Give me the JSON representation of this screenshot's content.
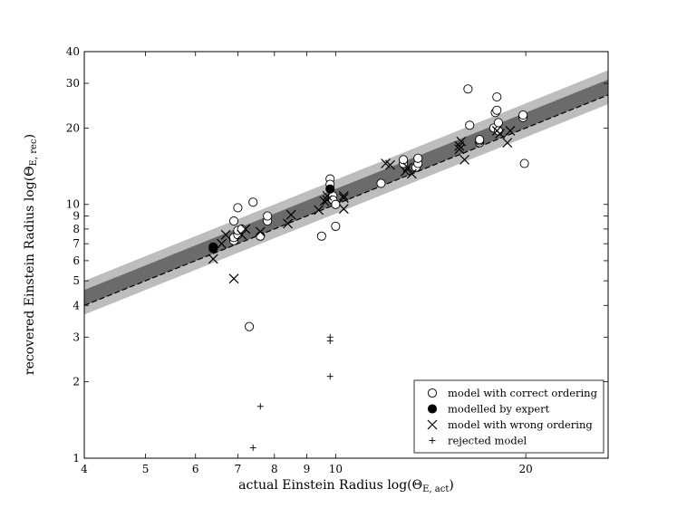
{
  "chart_data": {
    "type": "scatter",
    "xlabel": "actual Einstein Radius log(Θ",
    "xlabel_sub": "E, act",
    "ylabel": "recovered Einstein Radius log(Θ",
    "ylabel_sub": "E, rec",
    "label_close": ")",
    "xscale": "log",
    "yscale": "log",
    "xlim": [
      4,
      27
    ],
    "ylim": [
      1,
      40
    ],
    "x_ticks": [
      4,
      5,
      6,
      7,
      8,
      9,
      10,
      20
    ],
    "x_tick_labels": [
      "4",
      "5",
      "6",
      "7",
      "8",
      "9",
      "10",
      "20"
    ],
    "y_ticks": [
      1,
      2,
      3,
      4,
      5,
      6,
      7,
      8,
      9,
      10,
      20,
      30,
      40
    ],
    "y_tick_labels": [
      "1",
      "2",
      "3",
      "4",
      "5",
      "6",
      "7",
      "8",
      "9",
      "10",
      "20",
      "30",
      "40"
    ],
    "grid": false,
    "legend_position": "bottom-right",
    "bands": [
      {
        "type": "outer",
        "color": "#bdbdbd",
        "lower_factor": 0.92,
        "upper_factor": 1.25
      },
      {
        "type": "inner",
        "color": "#6b6b6b",
        "lower_factor": 1.0,
        "upper_factor": 1.15
      }
    ],
    "reference_line": {
      "style": "dashed",
      "slope": 1,
      "color": "#000000"
    },
    "series": [
      {
        "name": "model with correct ordering",
        "marker": "open-circle",
        "points": [
          [
            6.9,
            7.2
          ],
          [
            6.9,
            7.4
          ],
          [
            6.9,
            8.6
          ],
          [
            7.0,
            9.7
          ],
          [
            7.0,
            7.6
          ],
          [
            7.0,
            7.9
          ],
          [
            7.1,
            8.0
          ],
          [
            7.3,
            3.3
          ],
          [
            7.4,
            10.2
          ],
          [
            7.6,
            7.5
          ],
          [
            7.8,
            8.6
          ],
          [
            7.8,
            9.0
          ],
          [
            9.5,
            7.5
          ],
          [
            9.8,
            12.6
          ],
          [
            9.8,
            12.0
          ],
          [
            9.9,
            10.8
          ],
          [
            9.9,
            10.4
          ],
          [
            10.0,
            10.0
          ],
          [
            10.0,
            8.2
          ],
          [
            11.8,
            12.1
          ],
          [
            12.8,
            14.5
          ],
          [
            12.8,
            15.0
          ],
          [
            13.4,
            14.0
          ],
          [
            13.5,
            14.5
          ],
          [
            13.5,
            15.2
          ],
          [
            16.2,
            28.5
          ],
          [
            16.3,
            20.5
          ],
          [
            16.9,
            17.5
          ],
          [
            16.9,
            17.8
          ],
          [
            16.9,
            18.0
          ],
          [
            17.8,
            20.0
          ],
          [
            17.9,
            23.0
          ],
          [
            18.0,
            23.5
          ],
          [
            18.0,
            26.5
          ],
          [
            18.1,
            19.5
          ],
          [
            18.1,
            21.0
          ],
          [
            19.8,
            22.0
          ],
          [
            19.8,
            22.5
          ],
          [
            19.9,
            14.5
          ]
        ]
      },
      {
        "name": "modelled by expert",
        "marker": "filled-circle",
        "points": [
          [
            6.4,
            6.7
          ],
          [
            6.4,
            6.8
          ],
          [
            9.8,
            11.5
          ]
        ]
      },
      {
        "name": "model with wrong ordering",
        "marker": "x",
        "points": [
          [
            6.4,
            6.1
          ],
          [
            6.6,
            7.0
          ],
          [
            6.7,
            7.6
          ],
          [
            6.9,
            5.1
          ],
          [
            7.1,
            7.6
          ],
          [
            7.2,
            8.0
          ],
          [
            7.6,
            7.8
          ],
          [
            8.4,
            8.4
          ],
          [
            8.5,
            9.1
          ],
          [
            9.4,
            9.5
          ],
          [
            9.6,
            10.3
          ],
          [
            9.7,
            10.8
          ],
          [
            9.7,
            10.4
          ],
          [
            10.3,
            10.6
          ],
          [
            10.3,
            10.8
          ],
          [
            10.3,
            9.6
          ],
          [
            12.0,
            14.5
          ],
          [
            12.2,
            14.3
          ],
          [
            12.9,
            13.5
          ],
          [
            13.0,
            14.0
          ],
          [
            13.2,
            13.2
          ],
          [
            15.7,
            17.0
          ],
          [
            15.7,
            16.5
          ],
          [
            15.8,
            17.7
          ],
          [
            16.0,
            15.0
          ],
          [
            18.0,
            19.5
          ],
          [
            18.2,
            19.0
          ],
          [
            18.7,
            17.5
          ],
          [
            18.9,
            19.5
          ]
        ]
      },
      {
        "name": "rejected model",
        "marker": "plus",
        "points": [
          [
            7.4,
            1.1
          ],
          [
            7.6,
            1.6
          ],
          [
            9.8,
            3.0
          ],
          [
            9.8,
            2.9
          ],
          [
            9.8,
            2.1
          ]
        ]
      }
    ]
  }
}
